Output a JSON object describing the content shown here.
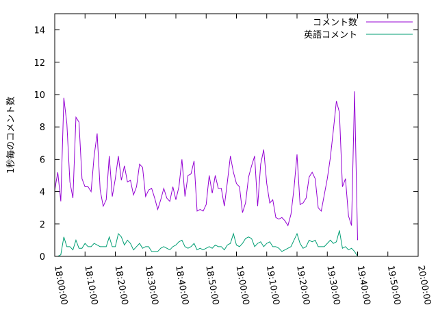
{
  "chart_data": {
    "type": "line",
    "title": "",
    "xlabel": "",
    "ylabel": "1秒毎のコメント数",
    "ylim": [
      0,
      15
    ],
    "xlim": [
      "18:00:00",
      "20:00:00"
    ],
    "grid": false,
    "legend_position": "top-right",
    "x_ticks": [
      "18:00:00",
      "18:10:00",
      "18:20:00",
      "18:30:00",
      "18:40:00",
      "18:50:00",
      "19:00:00",
      "19:10:00",
      "19:20:00",
      "19:30:00",
      "19:40:00",
      "19:50:00",
      "20:00:00"
    ],
    "y_ticks": [
      "0",
      "2",
      "4",
      "6",
      "8",
      "10",
      "12",
      "14"
    ],
    "x_step_seconds": 60,
    "series": [
      {
        "name": "コメント数",
        "color": "#9400d3",
        "values": [
          4.1,
          5.2,
          3.4,
          9.8,
          8.2,
          4.6,
          3.6,
          8.6,
          8.3,
          4.8,
          4.3,
          4.3,
          4.0,
          6.2,
          7.6,
          4.1,
          3.1,
          3.5,
          6.2,
          3.7,
          4.8,
          6.2,
          4.7,
          5.6,
          4.6,
          4.7,
          3.8,
          4.3,
          5.7,
          5.5,
          3.7,
          4.1,
          4.2,
          3.6,
          2.9,
          3.5,
          4.2,
          3.6,
          3.4,
          4.3,
          3.5,
          4.3,
          6.0,
          3.7,
          5.0,
          5.1,
          5.9,
          2.8,
          2.9,
          2.8,
          3.2,
          5.0,
          3.9,
          5.0,
          4.2,
          4.2,
          3.1,
          4.6,
          6.2,
          5.2,
          4.5,
          4.3,
          2.7,
          3.3,
          4.9,
          5.6,
          6.2,
          3.1,
          5.7,
          6.6,
          4.5,
          3.3,
          3.5,
          2.4,
          2.3,
          2.4,
          2.2,
          1.9,
          2.6,
          4.2,
          6.3,
          3.2,
          3.3,
          3.6,
          4.9,
          5.2,
          4.8,
          3.0,
          2.8,
          3.8,
          4.8,
          6.1,
          7.8,
          9.6,
          8.9,
          4.3,
          4.8,
          2.5,
          1.9,
          10.2,
          1.0
        ]
      },
      {
        "name": "英語コメント",
        "color": "#009e73",
        "values": [
          0.0,
          0.0,
          0.1,
          1.2,
          0.6,
          0.6,
          0.4,
          1.0,
          0.5,
          0.5,
          0.8,
          0.6,
          0.6,
          0.8,
          0.7,
          0.6,
          0.6,
          0.6,
          1.2,
          0.6,
          0.6,
          1.4,
          1.2,
          0.7,
          1.0,
          0.8,
          0.4,
          0.6,
          0.8,
          0.5,
          0.6,
          0.6,
          0.3,
          0.3,
          0.3,
          0.5,
          0.6,
          0.5,
          0.4,
          0.6,
          0.7,
          0.9,
          1.0,
          0.6,
          0.5,
          0.6,
          0.8,
          0.4,
          0.5,
          0.4,
          0.5,
          0.6,
          0.5,
          0.7,
          0.6,
          0.6,
          0.4,
          0.7,
          0.8,
          1.4,
          0.7,
          0.6,
          0.8,
          1.1,
          1.2,
          1.1,
          0.6,
          0.8,
          0.9,
          0.6,
          0.8,
          0.9,
          0.6,
          0.6,
          0.5,
          0.3,
          0.4,
          0.5,
          0.6,
          1.0,
          1.4,
          0.8,
          0.5,
          0.6,
          1.0,
          0.9,
          1.0,
          0.6,
          0.6,
          0.6,
          0.8,
          1.0,
          0.8,
          0.9,
          1.6,
          0.5,
          0.6,
          0.4,
          0.5,
          0.3,
          0.0
        ]
      }
    ]
  }
}
